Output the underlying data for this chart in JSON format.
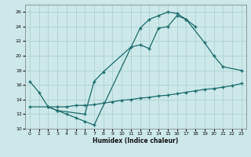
{
  "xlabel": "Humidex (Indice chaleur)",
  "xlim": [
    -0.5,
    23.5
  ],
  "ylim": [
    10,
    27
  ],
  "bg_color": "#cce8e8",
  "line_color": "#1e6b6b",
  "grid_color": "#aacfcf",
  "lines": [
    {
      "x": [
        0,
        1,
        2,
        3,
        4,
        5,
        6,
        7,
        12,
        13,
        14,
        15,
        16,
        17,
        18
      ],
      "y": [
        16.5,
        15.0,
        13.0,
        12.5,
        12.0,
        11.5,
        11.0,
        10.5,
        23.8,
        25.0,
        25.5,
        26.0,
        25.8,
        25.0,
        24.0
      ]
    },
    {
      "x": [
        2,
        3,
        6,
        7,
        8,
        11,
        12,
        13,
        14,
        15,
        16,
        17,
        19,
        20,
        21,
        23
      ],
      "y": [
        13.0,
        12.5,
        12.0,
        16.5,
        17.8,
        21.2,
        21.5,
        21.0,
        23.8,
        24.0,
        25.5,
        25.0,
        21.8,
        20.0,
        18.5,
        18.0
      ]
    },
    {
      "x": [
        0,
        3,
        4,
        5,
        6,
        7,
        8,
        9,
        10,
        11,
        12,
        13,
        14,
        15,
        16,
        17,
        18,
        19,
        20,
        21,
        22,
        23
      ],
      "y": [
        13.0,
        13.0,
        13.0,
        13.2,
        13.2,
        13.3,
        13.5,
        13.7,
        13.9,
        14.0,
        14.2,
        14.3,
        14.5,
        14.6,
        14.8,
        15.0,
        15.2,
        15.4,
        15.5,
        15.7,
        15.9,
        16.2
      ]
    }
  ]
}
